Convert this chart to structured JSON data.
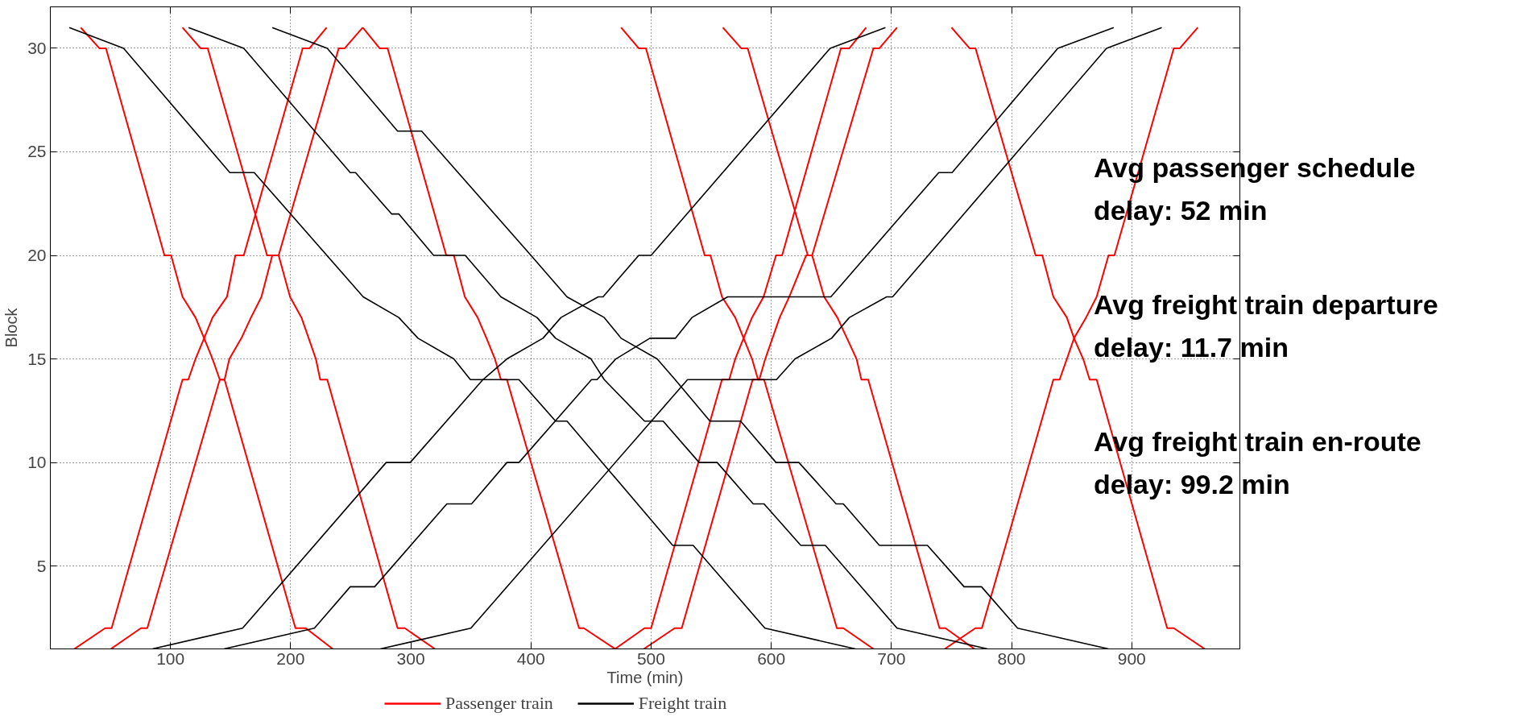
{
  "chart_data": {
    "type": "line",
    "xlabel": "Time (min)",
    "ylabel": "Block",
    "xlim": [
      0,
      990
    ],
    "ylim": [
      1,
      32
    ],
    "xticks": [
      100,
      200,
      300,
      400,
      500,
      600,
      700,
      800,
      900
    ],
    "yticks": [
      5,
      10,
      15,
      20,
      25,
      30
    ],
    "grid": true,
    "legend": "bottom",
    "annotations": [
      "Avg passenger schedule\ndelay: 52 min",
      "Avg freight train departure\ndelay: 11.7 min",
      "Avg freight train en-route\ndelay: 99.2 min"
    ],
    "series": [
      {
        "name": "Passenger train",
        "color": "#ff0000",
        "x": [
          25.3,
          40.8,
          46.3,
          95,
          100.5,
          110,
          120.8,
          128,
          135,
          141,
          145,
          204,
          212.6,
          235
        ],
        "values": [
          31,
          30,
          30,
          20,
          20,
          18,
          17,
          16,
          15,
          14,
          14,
          2,
          2,
          1
        ]
      },
      {
        "color": "#ff0000",
        "x": [
          110,
          125,
          131,
          180.4,
          190,
          199.5,
          209,
          215,
          221,
          224.6,
          230.5,
          289,
          295,
          320
        ],
        "values": [
          31,
          30,
          30,
          20,
          20,
          18,
          17,
          16,
          15,
          14,
          14,
          2,
          2,
          1
        ]
      },
      {
        "color": "#ff0000",
        "x": [
          260,
          274,
          280.7,
          329.5,
          335.8,
          345,
          355.6,
          363,
          370,
          375,
          380,
          440,
          444,
          470
        ],
        "values": [
          31,
          30,
          30,
          20,
          20,
          18,
          17,
          16,
          15,
          14,
          14,
          2,
          2,
          1
        ]
      },
      {
        "color": "#ff0000",
        "x": [
          475,
          489.7,
          495.7,
          544.6,
          549.4,
          559,
          570,
          577,
          584,
          589,
          594,
          654.6,
          660,
          685
        ],
        "values": [
          31,
          30,
          30,
          20,
          20,
          18,
          17,
          16,
          15,
          14,
          14,
          2,
          2,
          1
        ]
      },
      {
        "color": "#ff0000",
        "x": [
          559.7,
          575,
          580.4,
          630.4,
          634,
          644,
          655,
          663,
          671,
          675,
          680.7,
          740,
          745,
          769
        ],
        "values": [
          31,
          30,
          30,
          20,
          20,
          18,
          17,
          16,
          15,
          14,
          14,
          2,
          2,
          1
        ]
      },
      {
        "color": "#ff0000",
        "x": [
          750,
          765,
          770,
          820,
          825.6,
          834.8,
          846,
          852,
          859.6,
          865,
          870.8,
          929.5,
          935,
          960.7
        ],
        "values": [
          31,
          30,
          30,
          20,
          20,
          18,
          17,
          16,
          15,
          14,
          14,
          2,
          2,
          1
        ]
      },
      {
        "color": "#ff0000",
        "x": [
          20,
          45.6,
          51,
          110,
          114.8,
          120.8,
          128,
          135,
          147,
          154,
          161,
          210,
          215.7,
          230
        ],
        "values": [
          1,
          2,
          2,
          14,
          14,
          15,
          16,
          17,
          18,
          20,
          20,
          30,
          30,
          31
        ]
      },
      {
        "color": "#ff0000",
        "x": [
          50.4,
          75.4,
          80.7,
          141,
          145,
          149,
          159,
          167,
          175.7,
          184.7,
          190,
          240,
          245,
          260
        ],
        "values": [
          1,
          2,
          2,
          14,
          14,
          15,
          16,
          17,
          18,
          20,
          20,
          30,
          30,
          31
        ]
      },
      {
        "color": "#ff0000",
        "x": [
          470,
          494.5,
          500,
          559,
          565,
          570,
          577,
          584,
          593.6,
          604,
          609,
          658,
          665,
          679
        ],
        "values": [
          1,
          2,
          2,
          14,
          14,
          15,
          16,
          17,
          18,
          20,
          20,
          30,
          30,
          31
        ]
      },
      {
        "color": "#ff0000",
        "x": [
          494,
          519.6,
          525.5,
          584.5,
          590,
          595,
          601,
          607,
          615,
          629,
          634,
          685,
          690,
          704.7
        ],
        "values": [
          1,
          2,
          2,
          14,
          14,
          15,
          16,
          17,
          18,
          20,
          20,
          30,
          30,
          31
        ]
      },
      {
        "color": "#ff0000",
        "x": [
          744.4,
          769.9,
          775.3,
          834.8,
          840,
          846,
          852,
          862,
          870.8,
          880.7,
          885.6,
          935,
          940,
          955
        ],
        "values": [
          1,
          2,
          2,
          14,
          14,
          15,
          16,
          17,
          18,
          20,
          20,
          30,
          30,
          31
        ]
      },
      {
        "name": "Freight train",
        "color": "#000000",
        "x": [
          15.8,
          61,
          149.4,
          169.7,
          260.4,
          290,
          306,
          335.8,
          349.6,
          390,
          420.5,
          430,
          518,
          535,
          594.7,
          670
        ],
        "values": [
          31,
          30,
          24,
          24,
          18,
          17,
          16,
          15,
          14,
          14,
          12,
          12,
          6,
          6,
          2,
          1
        ]
      },
      {
        "color": "#000000",
        "x": [
          115,
          161,
          249.6,
          254,
          284,
          290,
          319,
          345.3,
          375,
          405,
          420.5,
          450,
          461,
          494.5,
          510,
          540,
          555,
          585,
          594,
          624.6,
          645,
          704.7,
          780
        ],
        "values": [
          31,
          30,
          24,
          24,
          22,
          22,
          20,
          20,
          18,
          17,
          16,
          15,
          14,
          12,
          12,
          10,
          10,
          8,
          8,
          6,
          6,
          2,
          1
        ]
      },
      {
        "color": "#000000",
        "x": [
          184.7,
          230.5,
          289,
          309,
          400,
          430,
          461,
          475,
          505,
          520,
          549,
          574.5,
          604,
          623,
          654,
          660,
          690,
          730,
          760.5,
          775,
          805,
          880.7
        ],
        "values": [
          31,
          30,
          26,
          26,
          20,
          18,
          17,
          16,
          15,
          14,
          12,
          12,
          10,
          10,
          8,
          8,
          6,
          6,
          4,
          4,
          2,
          1
        ]
      },
      {
        "color": "#000000",
        "x": [
          85,
          160,
          279.5,
          299.5,
          360,
          380,
          410,
          425,
          456,
          460,
          489.7,
          500,
          649,
          695
        ],
        "values": [
          1,
          2,
          10,
          10,
          14,
          15,
          16,
          17,
          18,
          18,
          20,
          20,
          30,
          31
        ]
      },
      {
        "color": "#000000",
        "x": [
          144.6,
          219.8,
          249.6,
          269.9,
          330,
          350.6,
          380,
          390,
          450.4,
          455,
          470.6,
          499,
          520.3,
          534,
          563.7,
          649.6,
          739.4,
          750.5,
          838.5,
          885
        ],
        "values": [
          1,
          2,
          4,
          4,
          8,
          8,
          10,
          10,
          14,
          14,
          15,
          16,
          16,
          17,
          18,
          18,
          24,
          24,
          30,
          31
        ]
      },
      {
        "color": "#000000",
        "x": [
          274.7,
          350,
          530.3,
          604.3,
          619.8,
          650.2,
          665,
          696,
          701,
          879,
          925
        ],
        "values": [
          1,
          2,
          14,
          14,
          15,
          16,
          17,
          18,
          18,
          30,
          31
        ]
      }
    ]
  }
}
